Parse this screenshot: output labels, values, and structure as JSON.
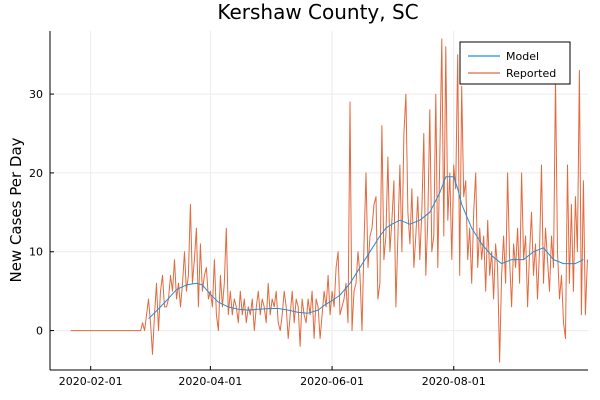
{
  "chart_data": {
    "type": "line",
    "title": "Kershaw County, SC",
    "xlabel": "",
    "ylabel": "New Cases Per Day",
    "x_axis": {
      "type": "date",
      "ticks": [
        "2020-02-01",
        "2020-04-01",
        "2020-06-01",
        "2020-08-01"
      ]
    },
    "y_axis": {
      "ticks": [
        0,
        10,
        20,
        30
      ],
      "ylim": [
        -5,
        38
      ]
    },
    "grid": true,
    "legend_position": "top-right",
    "series": [
      {
        "name": "Model",
        "color": "#1f8fd6",
        "points": [
          [
            "2020-03-01",
            1.5
          ],
          [
            "2020-03-05",
            2.5
          ],
          [
            "2020-03-10",
            3.8
          ],
          [
            "2020-03-15",
            5.2
          ],
          [
            "2020-03-20",
            5.8
          ],
          [
            "2020-03-25",
            6.0
          ],
          [
            "2020-03-28",
            5.8
          ],
          [
            "2020-04-01",
            4.6
          ],
          [
            "2020-04-05",
            3.6
          ],
          [
            "2020-04-10",
            3.0
          ],
          [
            "2020-04-15",
            2.7
          ],
          [
            "2020-04-20",
            2.6
          ],
          [
            "2020-04-25",
            2.7
          ],
          [
            "2020-05-01",
            2.8
          ],
          [
            "2020-05-05",
            2.8
          ],
          [
            "2020-05-10",
            2.6
          ],
          [
            "2020-05-15",
            2.3
          ],
          [
            "2020-05-20",
            2.2
          ],
          [
            "2020-05-25",
            2.6
          ],
          [
            "2020-05-28",
            3.2
          ],
          [
            "2020-06-01",
            3.8
          ],
          [
            "2020-06-05",
            4.5
          ],
          [
            "2020-06-10",
            6.0
          ],
          [
            "2020-06-15",
            8.0
          ],
          [
            "2020-06-20",
            10.0
          ],
          [
            "2020-06-25",
            12.0
          ],
          [
            "2020-06-28",
            13.0
          ],
          [
            "2020-07-01",
            13.5
          ],
          [
            "2020-07-05",
            14.0
          ],
          [
            "2020-07-10",
            13.5
          ],
          [
            "2020-07-15",
            14.0
          ],
          [
            "2020-07-20",
            15.0
          ],
          [
            "2020-07-25",
            17.5
          ],
          [
            "2020-07-28",
            19.5
          ],
          [
            "2020-08-01",
            19.5
          ],
          [
            "2020-08-03",
            18.0
          ],
          [
            "2020-08-05",
            16.0
          ],
          [
            "2020-08-10",
            13.0
          ],
          [
            "2020-08-15",
            11.0
          ],
          [
            "2020-08-20",
            9.5
          ],
          [
            "2020-08-25",
            8.5
          ],
          [
            "2020-08-30",
            9.0
          ],
          [
            "2020-09-05",
            9.0
          ],
          [
            "2020-09-10",
            10.0
          ],
          [
            "2020-09-15",
            10.5
          ],
          [
            "2020-09-20",
            9.0
          ],
          [
            "2020-09-25",
            8.5
          ],
          [
            "2020-10-01",
            8.5
          ],
          [
            "2020-10-05",
            9.0
          ]
        ]
      },
      {
        "name": "Reported",
        "color": "#e26a3f",
        "points": [
          [
            "2020-01-22",
            0
          ],
          [
            "2020-02-26",
            0
          ],
          [
            "2020-02-27",
            1
          ],
          [
            "2020-02-28",
            0
          ],
          [
            "2020-03-01",
            4
          ],
          [
            "2020-03-02",
            1
          ],
          [
            "2020-03-03",
            -3
          ],
          [
            "2020-03-04",
            2
          ],
          [
            "2020-03-05",
            6
          ],
          [
            "2020-03-06",
            0
          ],
          [
            "2020-03-07",
            5
          ],
          [
            "2020-03-08",
            7
          ],
          [
            "2020-03-09",
            3
          ],
          [
            "2020-03-10",
            3
          ],
          [
            "2020-03-11",
            4
          ],
          [
            "2020-03-12",
            7
          ],
          [
            "2020-03-13",
            5
          ],
          [
            "2020-03-14",
            9
          ],
          [
            "2020-03-15",
            4
          ],
          [
            "2020-03-16",
            6
          ],
          [
            "2020-03-17",
            3
          ],
          [
            "2020-03-18",
            6
          ],
          [
            "2020-03-19",
            10
          ],
          [
            "2020-03-20",
            5
          ],
          [
            "2020-03-21",
            7
          ],
          [
            "2020-03-22",
            16
          ],
          [
            "2020-03-23",
            6
          ],
          [
            "2020-03-24",
            9
          ],
          [
            "2020-03-25",
            13
          ],
          [
            "2020-03-26",
            3
          ],
          [
            "2020-03-27",
            11
          ],
          [
            "2020-03-28",
            5
          ],
          [
            "2020-03-29",
            7
          ],
          [
            "2020-03-30",
            8
          ],
          [
            "2020-03-31",
            4
          ],
          [
            "2020-04-01",
            5
          ],
          [
            "2020-04-02",
            3
          ],
          [
            "2020-04-03",
            9
          ],
          [
            "2020-04-04",
            2
          ],
          [
            "2020-04-05",
            0
          ],
          [
            "2020-04-06",
            7
          ],
          [
            "2020-04-07",
            3
          ],
          [
            "2020-04-08",
            6
          ],
          [
            "2020-04-09",
            13
          ],
          [
            "2020-04-10",
            2
          ],
          [
            "2020-04-11",
            5
          ],
          [
            "2020-04-12",
            2
          ],
          [
            "2020-04-13",
            4
          ],
          [
            "2020-04-14",
            3
          ],
          [
            "2020-04-15",
            1
          ],
          [
            "2020-04-16",
            5
          ],
          [
            "2020-04-17",
            2
          ],
          [
            "2020-04-18",
            4
          ],
          [
            "2020-04-19",
            1
          ],
          [
            "2020-04-20",
            3
          ],
          [
            "2020-04-21",
            2
          ],
          [
            "2020-04-22",
            4
          ],
          [
            "2020-04-23",
            0
          ],
          [
            "2020-04-24",
            3
          ],
          [
            "2020-04-25",
            5
          ],
          [
            "2020-04-26",
            2
          ],
          [
            "2020-04-27",
            4
          ],
          [
            "2020-04-28",
            3
          ],
          [
            "2020-04-29",
            1
          ],
          [
            "2020-04-30",
            6
          ],
          [
            "2020-05-01",
            2
          ],
          [
            "2020-05-02",
            4
          ],
          [
            "2020-05-03",
            3
          ],
          [
            "2020-05-04",
            5
          ],
          [
            "2020-05-05",
            1
          ],
          [
            "2020-05-06",
            0
          ],
          [
            "2020-05-07",
            2
          ],
          [
            "2020-05-08",
            5
          ],
          [
            "2020-05-09",
            3
          ],
          [
            "2020-05-10",
            -1
          ],
          [
            "2020-05-11",
            2
          ],
          [
            "2020-05-12",
            5
          ],
          [
            "2020-05-13",
            1
          ],
          [
            "2020-05-14",
            4
          ],
          [
            "2020-05-15",
            3
          ],
          [
            "2020-05-16",
            -2
          ],
          [
            "2020-05-17",
            4
          ],
          [
            "2020-05-18",
            2
          ],
          [
            "2020-05-19",
            1
          ],
          [
            "2020-05-20",
            4
          ],
          [
            "2020-05-21",
            2
          ],
          [
            "2020-05-22",
            5
          ],
          [
            "2020-05-23",
            -1
          ],
          [
            "2020-05-24",
            4
          ],
          [
            "2020-05-25",
            3
          ],
          [
            "2020-05-26",
            -1
          ],
          [
            "2020-05-27",
            2
          ],
          [
            "2020-05-28",
            5
          ],
          [
            "2020-05-29",
            3
          ],
          [
            "2020-05-30",
            7
          ],
          [
            "2020-05-31",
            2
          ],
          [
            "2020-06-01",
            5
          ],
          [
            "2020-06-02",
            3
          ],
          [
            "2020-06-03",
            8
          ],
          [
            "2020-06-04",
            10
          ],
          [
            "2020-06-05",
            2
          ],
          [
            "2020-06-06",
            3
          ],
          [
            "2020-06-07",
            4
          ],
          [
            "2020-06-08",
            6
          ],
          [
            "2020-06-09",
            1
          ],
          [
            "2020-06-10",
            29
          ],
          [
            "2020-06-11",
            0
          ],
          [
            "2020-06-12",
            5
          ],
          [
            "2020-06-13",
            6
          ],
          [
            "2020-06-14",
            10
          ],
          [
            "2020-06-15",
            7
          ],
          [
            "2020-06-16",
            0
          ],
          [
            "2020-06-17",
            11
          ],
          [
            "2020-06-18",
            20
          ],
          [
            "2020-06-19",
            8
          ],
          [
            "2020-06-20",
            12
          ],
          [
            "2020-06-21",
            13
          ],
          [
            "2020-06-22",
            16
          ],
          [
            "2020-06-23",
            17
          ],
          [
            "2020-06-24",
            4
          ],
          [
            "2020-06-25",
            6
          ],
          [
            "2020-06-26",
            26
          ],
          [
            "2020-06-27",
            9
          ],
          [
            "2020-06-28",
            12
          ],
          [
            "2020-06-29",
            22
          ],
          [
            "2020-06-30",
            10
          ],
          [
            "2020-07-01",
            14
          ],
          [
            "2020-07-02",
            19
          ],
          [
            "2020-07-03",
            3
          ],
          [
            "2020-07-04",
            12
          ],
          [
            "2020-07-05",
            21
          ],
          [
            "2020-07-06",
            10
          ],
          [
            "2020-07-07",
            25
          ],
          [
            "2020-07-08",
            30
          ],
          [
            "2020-07-09",
            15
          ],
          [
            "2020-07-10",
            11
          ],
          [
            "2020-07-11",
            18
          ],
          [
            "2020-07-12",
            8
          ],
          [
            "2020-07-13",
            12
          ],
          [
            "2020-07-14",
            17
          ],
          [
            "2020-07-15",
            9
          ],
          [
            "2020-07-16",
            15
          ],
          [
            "2020-07-17",
            25
          ],
          [
            "2020-07-18",
            7
          ],
          [
            "2020-07-19",
            14
          ],
          [
            "2020-07-20",
            28
          ],
          [
            "2020-07-21",
            10
          ],
          [
            "2020-07-22",
            12
          ],
          [
            "2020-07-23",
            30
          ],
          [
            "2020-07-24",
            8
          ],
          [
            "2020-07-25",
            22
          ],
          [
            "2020-07-26",
            37
          ],
          [
            "2020-07-27",
            12
          ],
          [
            "2020-07-28",
            36
          ],
          [
            "2020-07-29",
            14
          ],
          [
            "2020-07-30",
            20
          ],
          [
            "2020-07-31",
            9
          ],
          [
            "2020-08-01",
            21
          ],
          [
            "2020-08-02",
            18
          ],
          [
            "2020-08-03",
            35
          ],
          [
            "2020-08-04",
            7
          ],
          [
            "2020-08-05",
            31
          ],
          [
            "2020-08-06",
            17
          ],
          [
            "2020-08-07",
            19
          ],
          [
            "2020-08-08",
            9
          ],
          [
            "2020-08-09",
            13
          ],
          [
            "2020-08-10",
            6
          ],
          [
            "2020-08-11",
            15
          ],
          [
            "2020-08-12",
            20
          ],
          [
            "2020-08-13",
            8
          ],
          [
            "2020-08-14",
            13
          ],
          [
            "2020-08-15",
            9
          ],
          [
            "2020-08-16",
            12
          ],
          [
            "2020-08-17",
            5
          ],
          [
            "2020-08-18",
            14
          ],
          [
            "2020-08-19",
            7
          ],
          [
            "2020-08-20",
            10
          ],
          [
            "2020-08-21",
            4
          ],
          [
            "2020-08-22",
            11
          ],
          [
            "2020-08-23",
            8
          ],
          [
            "2020-08-24",
            -4
          ],
          [
            "2020-08-25",
            7
          ],
          [
            "2020-08-26",
            12
          ],
          [
            "2020-08-27",
            6
          ],
          [
            "2020-08-28",
            20
          ],
          [
            "2020-08-29",
            9
          ],
          [
            "2020-08-30",
            3
          ],
          [
            "2020-08-31",
            11
          ],
          [
            "2020-09-01",
            8
          ],
          [
            "2020-09-02",
            13
          ],
          [
            "2020-09-03",
            6
          ],
          [
            "2020-09-04",
            20
          ],
          [
            "2020-09-05",
            9
          ],
          [
            "2020-09-06",
            12
          ],
          [
            "2020-09-07",
            3
          ],
          [
            "2020-09-08",
            10
          ],
          [
            "2020-09-09",
            15
          ],
          [
            "2020-09-10",
            7
          ],
          [
            "2020-09-11",
            11
          ],
          [
            "2020-09-12",
            4
          ],
          [
            "2020-09-13",
            10
          ],
          [
            "2020-09-14",
            21
          ],
          [
            "2020-09-15",
            6
          ],
          [
            "2020-09-16",
            13
          ],
          [
            "2020-09-17",
            9
          ],
          [
            "2020-09-18",
            5
          ],
          [
            "2020-09-19",
            12
          ],
          [
            "2020-09-20",
            8
          ],
          [
            "2020-09-21",
            32
          ],
          [
            "2020-09-22",
            10
          ],
          [
            "2020-09-23",
            4
          ],
          [
            "2020-09-24",
            7
          ],
          [
            "2020-09-25",
            1
          ],
          [
            "2020-09-26",
            -1
          ],
          [
            "2020-09-27",
            21
          ],
          [
            "2020-09-28",
            6
          ],
          [
            "2020-09-29",
            16
          ],
          [
            "2020-09-30",
            5
          ],
          [
            "2020-10-01",
            17
          ],
          [
            "2020-10-02",
            10
          ],
          [
            "2020-10-03",
            33
          ],
          [
            "2020-10-04",
            2
          ],
          [
            "2020-10-05",
            19
          ],
          [
            "2020-10-06",
            2
          ],
          [
            "2020-10-07",
            9
          ]
        ]
      }
    ]
  }
}
